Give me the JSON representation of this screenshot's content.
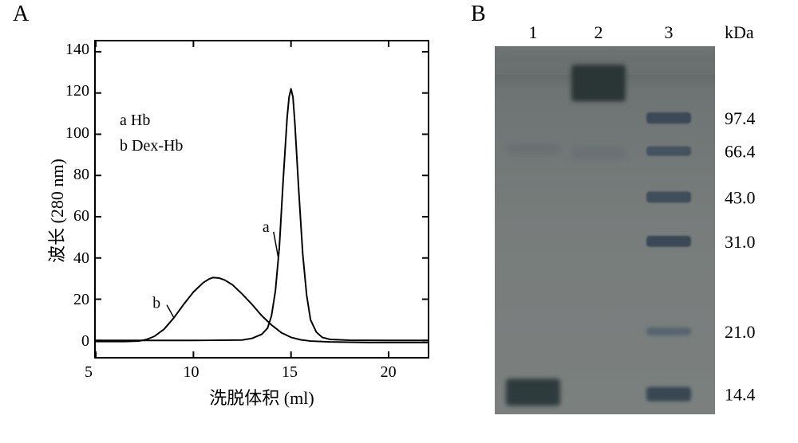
{
  "panelA": {
    "label": "A",
    "label_fontsize": 28,
    "chart": {
      "type": "line",
      "xlabel": "洗脱体积 (ml)",
      "ylabel": "波长 (280 nm)",
      "label_fontsize": 22,
      "tick_fontsize": 20,
      "xlim": [
        5,
        22
      ],
      "ylim": [
        -8,
        145
      ],
      "xticks": [
        5,
        10,
        15,
        20
      ],
      "yticks": [
        0,
        20,
        40,
        60,
        80,
        100,
        120,
        140
      ],
      "background_color": "#ffffff",
      "axis_color": "#000000",
      "line_width": 2,
      "legend_items": [
        {
          "key": "a",
          "text": "Hb"
        },
        {
          "key": "b",
          "text": "Dex-Hb"
        }
      ],
      "series_annotation_a": "a",
      "series_annotation_b": "b",
      "annotation_fontsize": 20,
      "series": {
        "a": {
          "color": "#000000",
          "points": [
            [
              5.0,
              0.0
            ],
            [
              7.0,
              0.0
            ],
            [
              10.0,
              0.0
            ],
            [
              12.5,
              0.2
            ],
            [
              13.0,
              1.0
            ],
            [
              13.5,
              3.0
            ],
            [
              13.8,
              6.0
            ],
            [
              14.0,
              12.0
            ],
            [
              14.2,
              24.0
            ],
            [
              14.4,
              45.0
            ],
            [
              14.6,
              78.0
            ],
            [
              14.8,
              108.0
            ],
            [
              14.9,
              118.0
            ],
            [
              15.0,
              122.0
            ],
            [
              15.1,
              118.0
            ],
            [
              15.2,
              105.0
            ],
            [
              15.4,
              72.0
            ],
            [
              15.6,
              42.0
            ],
            [
              15.8,
              22.0
            ],
            [
              16.0,
              10.0
            ],
            [
              16.3,
              4.0
            ],
            [
              16.6,
              1.5
            ],
            [
              17.0,
              0.5
            ],
            [
              18.0,
              0.1
            ],
            [
              20.0,
              0.0
            ],
            [
              22.0,
              0.0
            ]
          ]
        },
        "b": {
          "color": "#000000",
          "points": [
            [
              5.0,
              -0.5
            ],
            [
              6.5,
              -0.5
            ],
            [
              7.2,
              -0.3
            ],
            [
              7.6,
              0.5
            ],
            [
              8.0,
              2.0
            ],
            [
              8.5,
              5.5
            ],
            [
              9.0,
              11.0
            ],
            [
              9.5,
              17.5
            ],
            [
              10.0,
              23.5
            ],
            [
              10.5,
              28.0
            ],
            [
              10.8,
              29.8
            ],
            [
              11.0,
              30.5
            ],
            [
              11.3,
              30.3
            ],
            [
              11.6,
              29.3
            ],
            [
              12.0,
              27.0
            ],
            [
              12.5,
              22.5
            ],
            [
              13.0,
              17.5
            ],
            [
              13.5,
              12.0
            ],
            [
              14.0,
              7.5
            ],
            [
              14.5,
              3.8
            ],
            [
              15.0,
              1.5
            ],
            [
              15.5,
              0.3
            ],
            [
              16.0,
              -0.3
            ],
            [
              17.0,
              -0.7
            ],
            [
              19.0,
              -1.0
            ],
            [
              22.0,
              -1.0
            ]
          ]
        }
      }
    }
  },
  "panelB": {
    "label": "B",
    "label_fontsize": 28,
    "gel": {
      "background_color": "#767b7a",
      "stacking_color": "#6d7372",
      "lane_label_fontsize": 22,
      "mw_header": "kDa",
      "mw_fontsize": 22,
      "lanes": [
        {
          "id": "1",
          "label": "1"
        },
        {
          "id": "2",
          "label": "2"
        },
        {
          "id": "3",
          "label": "3"
        }
      ],
      "mw_markers": [
        {
          "value": "97.4",
          "rel_y": 0.195
        },
        {
          "value": "66.4",
          "rel_y": 0.285
        },
        {
          "value": "43.0",
          "rel_y": 0.41
        },
        {
          "value": "31.0",
          "rel_y": 0.53
        },
        {
          "value": "21.0",
          "rel_y": 0.775
        },
        {
          "value": "14.4",
          "rel_y": 0.945
        }
      ],
      "lane1_bands": [
        {
          "rel_y": 0.94,
          "height": 34,
          "color": "#2f3a3c",
          "blur": 3
        },
        {
          "rel_y": 0.28,
          "height": 14,
          "color": "#6a7072",
          "blur": 4
        }
      ],
      "lane2_bands": [
        {
          "rel_y": 0.1,
          "height": 46,
          "color": "#2b3436",
          "blur": 3
        },
        {
          "rel_y": 0.29,
          "height": 16,
          "color": "#6b7173",
          "blur": 4
        }
      ],
      "lane3_bands": [
        {
          "rel_y": 0.195,
          "height": 14,
          "color": "#3b4a58",
          "blur": 1
        },
        {
          "rel_y": 0.285,
          "height": 12,
          "color": "#445260",
          "blur": 1
        },
        {
          "rel_y": 0.41,
          "height": 14,
          "color": "#3f4d5a",
          "blur": 1
        },
        {
          "rel_y": 0.53,
          "height": 14,
          "color": "#3a4956",
          "blur": 1
        },
        {
          "rel_y": 0.775,
          "height": 10,
          "color": "#56636e",
          "blur": 2
        },
        {
          "rel_y": 0.945,
          "height": 18,
          "color": "#394751",
          "blur": 2
        }
      ]
    }
  }
}
